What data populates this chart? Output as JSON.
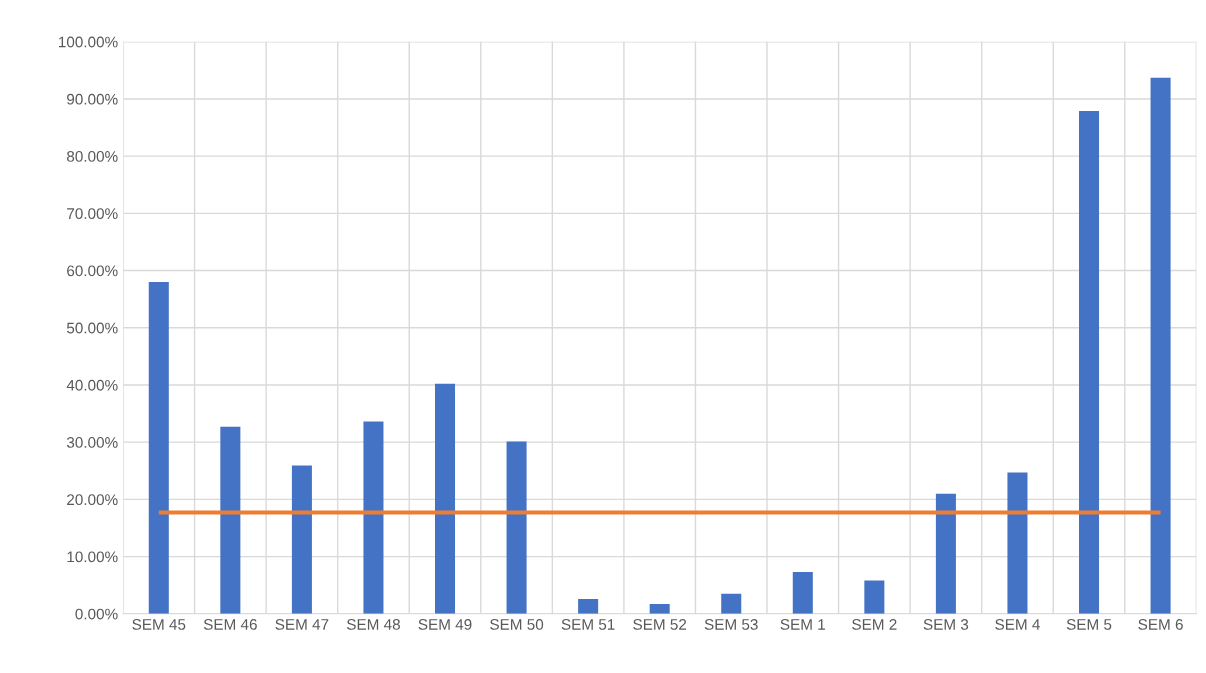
{
  "chart_data": {
    "type": "bar",
    "categories": [
      "SEM 45",
      "SEM 46",
      "SEM 47",
      "SEM 48",
      "SEM 49",
      "SEM 50",
      "SEM 51",
      "SEM 52",
      "SEM 53",
      "SEM 1",
      "SEM 2",
      "SEM 3",
      "SEM 4",
      "SEM 5",
      "SEM 6"
    ],
    "series": [
      {
        "color": "#4472c4",
        "values": [
          58.0,
          32.7,
          25.9,
          33.6,
          40.2,
          30.1,
          2.6,
          1.7,
          3.5,
          7.3,
          5.8,
          21.0,
          24.7,
          87.9,
          93.7
        ]
      },
      {
        "type": "line",
        "color": "#ed7d31",
        "values": [
          17.7,
          17.7,
          17.7,
          17.7,
          17.7,
          17.7,
          17.7,
          17.7,
          17.7,
          17.7,
          17.7,
          17.7,
          17.7,
          17.7,
          17.7
        ]
      }
    ],
    "ylim": [
      0,
      100
    ],
    "yticks": [
      {
        "value": 0,
        "label": "0.00%"
      },
      {
        "value": 10,
        "label": "10.00%"
      },
      {
        "value": 20,
        "label": "20.00%"
      },
      {
        "value": 30,
        "label": "30.00%"
      },
      {
        "value": 40,
        "label": "40.00%"
      },
      {
        "value": 50,
        "label": "50.00%"
      },
      {
        "value": 60,
        "label": "60.00%"
      },
      {
        "value": 70,
        "label": "70.00%"
      },
      {
        "value": 80,
        "label": "80.00%"
      },
      {
        "value": 90,
        "label": "90.00%"
      },
      {
        "value": 100,
        "label": "100.00%"
      }
    ],
    "grid": true,
    "legend": false
  }
}
